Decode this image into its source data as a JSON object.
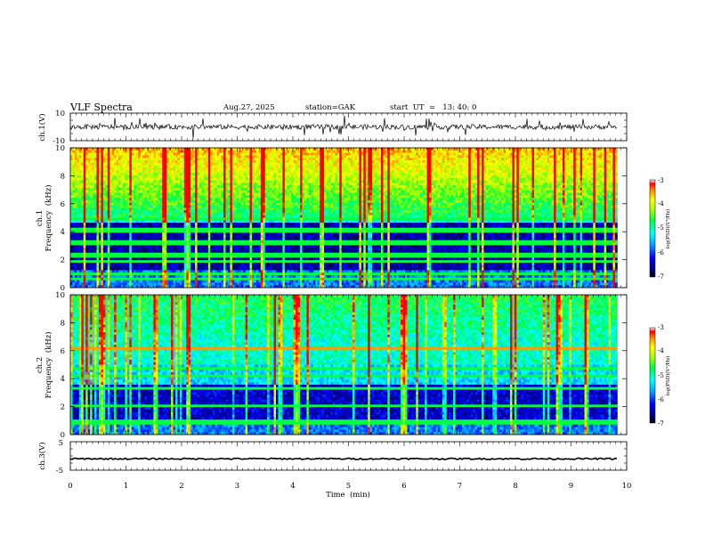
{
  "header": {
    "title": "VLF  Spectra",
    "date": "Aug.27, 2025",
    "station": "station=GAK",
    "start": "start  UT  =   13: 40: 0"
  },
  "chart_data": [
    {
      "type": "line",
      "name": "ch1-waveform",
      "ylabel": "ch.1(V)",
      "ylim": [
        -10,
        10
      ],
      "yticks": [
        "10",
        "-10"
      ],
      "baseline": 0
    },
    {
      "type": "heatmap",
      "name": "ch1-spectrogram",
      "ylabel": "ch.1\nFrequency  (kHz)",
      "ylabel_line1": "ch.1",
      "ylabel_line2": "Frequency  (kHz)",
      "ylim": [
        0,
        10
      ],
      "yticks": [
        "0",
        "2",
        "4",
        "6",
        "8",
        "10"
      ],
      "data_end_min": 9.83,
      "colorbar": {
        "label": "log(PSD)(V²/Hz)",
        "range": [
          -7,
          -3
        ],
        "ticks": [
          "-3",
          "-4",
          "-5",
          "-6",
          "-7"
        ]
      },
      "bands_khz": [
        0.6,
        1.0,
        1.9,
        2.35,
        3.2,
        4.1,
        4.9
      ]
    },
    {
      "type": "heatmap",
      "name": "ch2-spectrogram",
      "ylabel_line1": "ch.2",
      "ylabel_line2": "Frequency  (kHz)",
      "ylim": [
        0,
        10
      ],
      "yticks": [
        "0",
        "2",
        "4",
        "6",
        "8",
        "10"
      ],
      "data_end_min": 9.83,
      "colorbar": {
        "label": "log(PSD)(V²/Hz)",
        "range": [
          -7,
          -3
        ],
        "ticks": [
          "-3",
          "-4",
          "-5",
          "-6",
          "-7"
        ]
      },
      "bands_khz": [
        0.9,
        2.05,
        3.3,
        4.15,
        4.7,
        6.2
      ]
    },
    {
      "type": "line",
      "name": "ch3-waveform",
      "ylabel": "ch.3(V)",
      "ylim": [
        -5,
        5
      ],
      "yticks": [
        "5",
        "-5"
      ],
      "baseline": -1
    }
  ],
  "xaxis": {
    "label": "Time  (min)",
    "range": [
      0,
      10
    ],
    "ticks": [
      "0",
      "1",
      "2",
      "3",
      "4",
      "5",
      "6",
      "7",
      "8",
      "9",
      "10"
    ]
  }
}
